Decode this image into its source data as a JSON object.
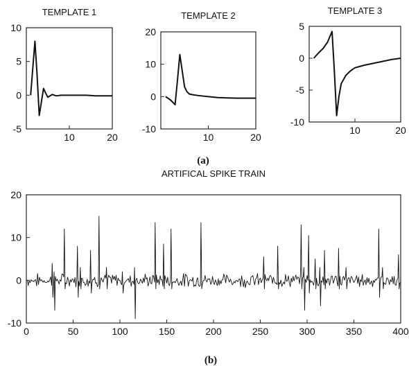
{
  "chart_data": [
    {
      "type": "line",
      "title": "TEMPLATE 1",
      "xlim": [
        0,
        20
      ],
      "ylim": [
        -5,
        10
      ],
      "xticks": [
        10,
        20
      ],
      "yticks": [
        10,
        5,
        0,
        -5
      ],
      "series": [
        {
          "x": [
            1,
            1.5,
            2,
            2.5,
            3,
            3.5,
            4,
            4.5,
            5,
            6,
            7,
            8,
            10,
            12,
            14,
            16,
            18,
            20
          ],
          "y": [
            0,
            4,
            8,
            3,
            -3,
            -1,
            1,
            0.3,
            -0.3,
            0.1,
            -0.1,
            0,
            0,
            0,
            0,
            -0.1,
            -0.1,
            -0.1
          ]
        }
      ]
    },
    {
      "type": "line",
      "title": "TEMPLATE 2",
      "xlim": [
        0,
        20
      ],
      "ylim": [
        -10,
        20
      ],
      "xticks": [
        10,
        20
      ],
      "yticks": [
        20,
        10,
        0,
        -10
      ],
      "series": [
        {
          "x": [
            1,
            2,
            3,
            3.5,
            4,
            4.5,
            5,
            5.5,
            6,
            7,
            8,
            10,
            12,
            14,
            16,
            18,
            20
          ],
          "y": [
            0,
            -1,
            -2.5,
            5,
            13,
            8,
            3,
            1.5,
            0.8,
            0.5,
            0.3,
            0,
            -0.3,
            -0.4,
            -0.5,
            -0.5,
            -0.5
          ]
        }
      ]
    },
    {
      "type": "line",
      "title": "TEMPLATE 3",
      "xlim": [
        0,
        20
      ],
      "ylim": [
        -10,
        5
      ],
      "xticks": [
        10,
        20
      ],
      "yticks": [
        5,
        0,
        -5,
        -10
      ],
      "series": [
        {
          "x": [
            1,
            2,
            3,
            4,
            5,
            5.5,
            6,
            6.5,
            7,
            8,
            9,
            10,
            12,
            14,
            16,
            18,
            20
          ],
          "y": [
            0,
            0.8,
            1.5,
            2.5,
            4.2,
            -2,
            -9,
            -6,
            -4,
            -2.7,
            -2,
            -1.5,
            -1.1,
            -0.8,
            -0.5,
            -0.2,
            0
          ]
        }
      ]
    },
    {
      "type": "line",
      "title": "ARTIFICAL SPIKE TRAIN",
      "xlim": [
        0,
        400
      ],
      "ylim": [
        -10,
        20
      ],
      "xticks": [
        0,
        50,
        100,
        150,
        200,
        250,
        300,
        350,
        400
      ],
      "yticks": [
        20,
        10,
        0,
        -10
      ],
      "noise_amplitude": 1.2,
      "series": [
        {
          "spikes": [
            {
              "x": 28,
              "up": 4,
              "down": -4
            },
            {
              "x": 30,
              "up": 2,
              "down": -7
            },
            {
              "x": 41,
              "up": 12,
              "down": -2
            },
            {
              "x": 55,
              "up": 8,
              "down": -4
            },
            {
              "x": 58,
              "up": 3,
              "down": -2
            },
            {
              "x": 69,
              "up": 7,
              "down": -3
            },
            {
              "x": 78,
              "up": 15,
              "down": -2
            },
            {
              "x": 86,
              "up": 3,
              "down": -2
            },
            {
              "x": 103,
              "up": 2,
              "down": -3
            },
            {
              "x": 116,
              "up": 3,
              "down": -9
            },
            {
              "x": 138,
              "up": 13.5,
              "down": -2
            },
            {
              "x": 147,
              "up": 8.5,
              "down": -2
            },
            {
              "x": 155,
              "up": 12,
              "down": -2
            },
            {
              "x": 187,
              "up": 13.5,
              "down": -2
            },
            {
              "x": 254,
              "up": 5.5,
              "down": -2
            },
            {
              "x": 269,
              "up": 8,
              "down": -2
            },
            {
              "x": 294,
              "up": 13,
              "down": -2
            },
            {
              "x": 297,
              "up": 3,
              "down": -7
            },
            {
              "x": 302,
              "up": 10.5,
              "down": -3
            },
            {
              "x": 309,
              "up": 5,
              "down": -2
            },
            {
              "x": 314,
              "up": 3,
              "down": -6
            },
            {
              "x": 319,
              "up": 7,
              "down": -2
            },
            {
              "x": 334,
              "up": 7.5,
              "down": -2
            },
            {
              "x": 342,
              "up": 3,
              "down": -2
            },
            {
              "x": 377,
              "up": 12,
              "down": -4
            },
            {
              "x": 381,
              "up": 3,
              "down": -2
            },
            {
              "x": 398,
              "up": 6,
              "down": -2
            }
          ]
        }
      ]
    }
  ],
  "captions": {
    "a": "(a)",
    "b": "(b)"
  }
}
